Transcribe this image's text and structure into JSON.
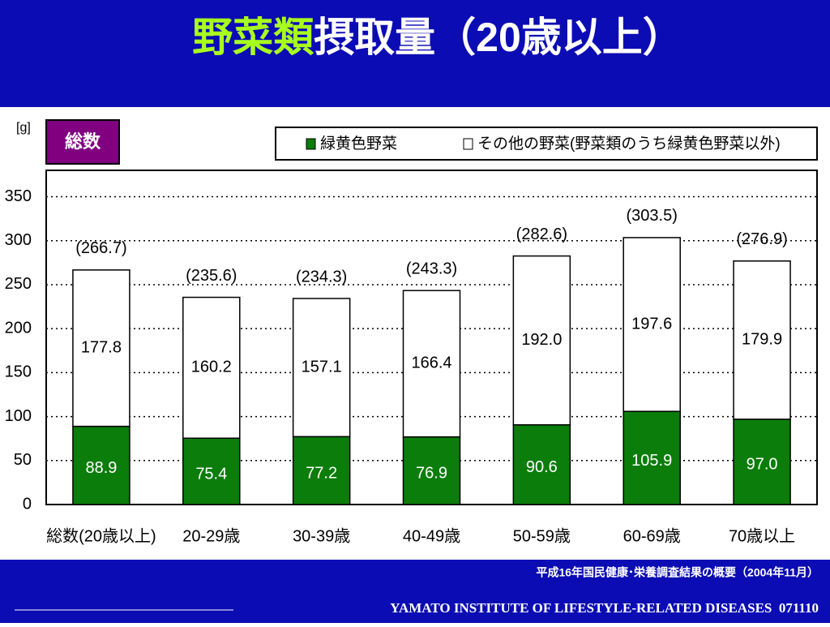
{
  "header": {
    "title_highlight": "野菜類",
    "title": "摂取量（20歳以上）"
  },
  "chart_data": {
    "type": "stacked_bar",
    "y_unit": "[g]",
    "badge": "総数",
    "categories": [
      "総数(20歳以上)",
      "20-29歳",
      "30-39歳",
      "40-49歳",
      "50-59歳",
      "60-69歳",
      "70歳以上"
    ],
    "series": [
      {
        "name": "緑黄色野菜",
        "color": "#0b7d0b",
        "values": [
          88.9,
          75.4,
          77.2,
          76.9,
          90.6,
          105.9,
          97.0
        ],
        "value_labels": [
          "88.9",
          "75.4",
          "77.2",
          "76.9",
          "90.6",
          "105.9",
          "97.0"
        ]
      },
      {
        "name": "その他の野菜(野菜類のうち緑黄色野菜以外)",
        "color": "#ffffff",
        "values": [
          177.8,
          160.2,
          157.1,
          166.4,
          192.0,
          197.6,
          179.9
        ],
        "value_labels": [
          "177.8",
          "160.2",
          "157.1",
          "166.4",
          "192.0",
          "197.6",
          "179.9"
        ]
      }
    ],
    "totals": {
      "values": [
        266.7,
        235.6,
        234.3,
        243.3,
        282.6,
        303.5,
        276.9
      ],
      "value_labels": [
        "(266.7)",
        "(235.6)",
        "(234.3)",
        "(243.3)",
        "(282.6)",
        "(303.5)",
        "(276.9)"
      ]
    },
    "ylim": [
      0,
      380
    ],
    "yticks": [
      0,
      50,
      100,
      150,
      200,
      250,
      300,
      350
    ],
    "grid": true
  },
  "footer": {
    "source": "平成16年国民健康･栄養調査結果の概要（2004年11月）",
    "institute": "YAMATO INSTITUTE OF LIFESTYLE-RELATED DISEASES  071110"
  }
}
